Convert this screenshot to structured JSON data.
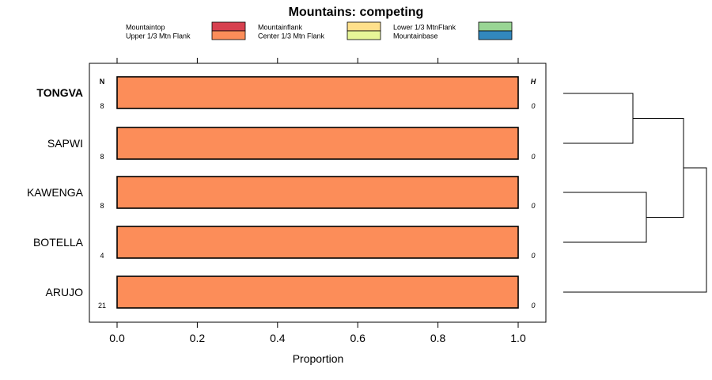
{
  "chart_data": {
    "type": "bar",
    "orientation": "horizontal",
    "stacked": true,
    "title": "Mountains: competing",
    "xlabel": "Proportion",
    "ylabel": "",
    "xlim": [
      -0.07,
      1.07
    ],
    "xticks": [
      0.0,
      0.2,
      0.4,
      0.6,
      0.8,
      1.0
    ],
    "xtick_labels": [
      "0.0",
      "0.2",
      "0.4",
      "0.6",
      "0.8",
      "1.0"
    ],
    "n_header": "N",
    "h_header": "H",
    "legend": [
      {
        "name": "Mountaintop",
        "color": "#d7404f"
      },
      {
        "name": "Upper 1/3 Mtn Flank",
        "color": "#fc8d59"
      },
      {
        "name": "Mountainflank",
        "color": "#fee08b"
      },
      {
        "name": "Center 1/3 Mtn Flank",
        "color": "#e6f598"
      },
      {
        "name": "Lower 1/3 MtnFlank",
        "color": "#99d594"
      },
      {
        "name": "Mountainbase",
        "color": "#3288bd"
      }
    ],
    "categories": [
      "TONGVA",
      "SAPWI",
      "KAWENGA",
      "BOTELLA",
      "ARUJO"
    ],
    "highlighted": "TONGVA",
    "n": [
      "8",
      "8",
      "8",
      "4",
      "21"
    ],
    "h": [
      "0",
      "0",
      "0",
      "0",
      "0"
    ],
    "series": [
      {
        "name": "Mountaintop",
        "values": [
          0,
          0,
          0,
          0,
          0
        ]
      },
      {
        "name": "Upper 1/3 Mtn Flank",
        "values": [
          1,
          1,
          1,
          1,
          1
        ]
      },
      {
        "name": "Mountainflank",
        "values": [
          0,
          0,
          0,
          0,
          0
        ]
      },
      {
        "name": "Center 1/3 Mtn Flank",
        "values": [
          0,
          0,
          0,
          0,
          0
        ]
      },
      {
        "name": "Lower 1/3 MtnFlank",
        "values": [
          0,
          0,
          0,
          0,
          0
        ]
      },
      {
        "name": "Mountainbase",
        "values": [
          0,
          0,
          0,
          0,
          0
        ]
      }
    ],
    "dendrogram": {
      "merges": [
        {
          "left": "TONGVA",
          "right": "SAPWI",
          "height": 1
        },
        {
          "left": "KAWENGA",
          "right": "BOTELLA",
          "height": 1
        },
        {
          "left": "TONGVA+SAPWI",
          "right": "KAWENGA+BOTELLA",
          "height": 2
        },
        {
          "left": "all-four",
          "right": "ARUJO",
          "height": 3
        }
      ]
    }
  }
}
